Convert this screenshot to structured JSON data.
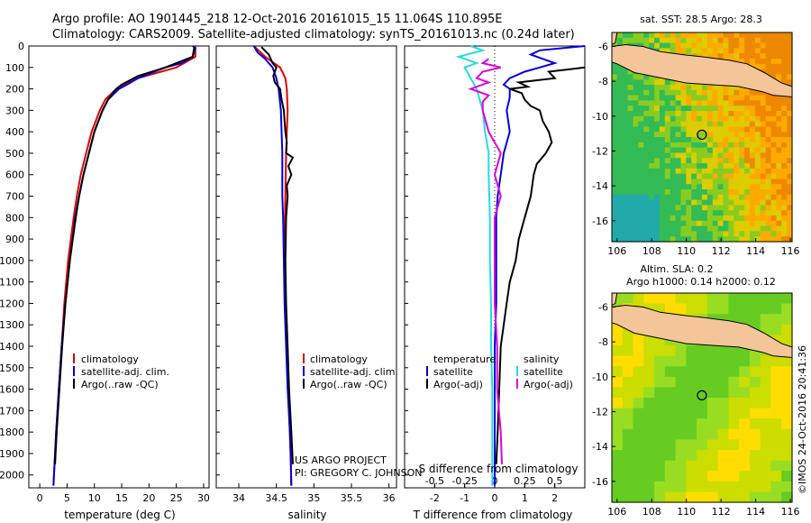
{
  "header": {
    "line1": "Argo profile: AO 1901445_218 12-Oct-2016 20161015_15 11.064S 110.895E",
    "line2": "Climatology: CARS2009. Satellite-adjusted climatology: synTS_20161013.nc (0.24d later)"
  },
  "credits": {
    "project": "US ARGO PROJECT",
    "pi": "PI: GREGORY C. JOHNSON",
    "stamp": "©IMOS 24-Oct-2016 20:41:36"
  },
  "colors": {
    "climatology": "#e00000",
    "satellite": "#0000dd",
    "argo": "#000000",
    "sat_salinity": "#22dddd",
    "argo_salinity": "#dd00dd"
  },
  "chart_data": [
    {
      "id": "temperature",
      "type": "line",
      "xlabel": "temperature (deg C)",
      "xlim": [
        -2,
        31
      ],
      "xticks": [
        0,
        5,
        10,
        15,
        20,
        25,
        30
      ],
      "ylim": [
        0,
        2060
      ],
      "yticks": [
        0,
        100,
        200,
        300,
        400,
        500,
        600,
        700,
        800,
        900,
        1000,
        1100,
        1200,
        1300,
        1400,
        1500,
        1600,
        1700,
        1800,
        1900,
        2000
      ],
      "legend": [
        "climatology",
        "satellite-adj. clim.",
        "Argo(..raw -QC)"
      ],
      "series": [
        {
          "name": "climatology",
          "color": "#e00000",
          "depth": [
            0,
            50,
            100,
            150,
            180,
            200,
            250,
            300,
            400,
            500,
            600,
            700,
            800,
            1000,
            1200,
            1400,
            1600,
            1800,
            2050
          ],
          "values": [
            28.5,
            28.5,
            25,
            18,
            15.5,
            14,
            12,
            11,
            9.5,
            8.5,
            7.5,
            6.8,
            6.2,
            5.2,
            4.5,
            4,
            3.5,
            3,
            2.5
          ]
        },
        {
          "name": "satellite-adj. clim.",
          "color": "#0000dd",
          "depth": [
            0,
            10,
            50,
            80,
            100,
            150,
            180,
            200,
            250,
            300,
            400,
            500,
            600,
            700,
            800,
            1000,
            1200,
            1400,
            1600,
            1800,
            2050
          ],
          "values": [
            28,
            28.5,
            28,
            26,
            23,
            18,
            16,
            14.5,
            12.5,
            11.5,
            10,
            9,
            8,
            7.2,
            6.5,
            5.5,
            4.7,
            4,
            3.5,
            3,
            2.5
          ]
        },
        {
          "name": "Argo(..raw -QC)",
          "color": "#000000",
          "depth": [
            5,
            50,
            100,
            140,
            180,
            200,
            250,
            300,
            400,
            500,
            600,
            700,
            800,
            1000,
            1200,
            1400,
            1600,
            1800,
            1950
          ],
          "values": [
            28.3,
            28,
            23,
            18,
            15,
            14,
            12.5,
            11.5,
            10,
            9,
            8,
            7.2,
            6.6,
            5.5,
            4.7,
            4.1,
            3.6,
            3.1,
            2.8
          ]
        }
      ]
    },
    {
      "id": "salinity",
      "type": "line",
      "xlabel": "salinity",
      "xlim": [
        33.7,
        36.1
      ],
      "xticks": [
        34,
        34.5,
        35,
        35.5,
        36
      ],
      "ylim": [
        0,
        2060
      ],
      "legend": [
        "climatology",
        "satellite-adj. clim.",
        "Argo(..raw -QC)"
      ],
      "series": [
        {
          "name": "climatology",
          "color": "#e00000",
          "depth": [
            0,
            50,
            100,
            150,
            200,
            300,
            400,
            500,
            700,
            900,
            1100,
            1300,
            1500,
            1700,
            1900,
            2050
          ],
          "values": [
            34.2,
            34.35,
            34.55,
            34.62,
            34.64,
            34.65,
            34.64,
            34.63,
            34.62,
            34.61,
            34.62,
            34.63,
            34.65,
            34.67,
            34.69,
            34.7
          ]
        },
        {
          "name": "satellite-adj. clim.",
          "color": "#0000dd",
          "depth": [
            0,
            30,
            60,
            100,
            150,
            200,
            300,
            400,
            500,
            600,
            700,
            800,
            1000,
            1200,
            1400,
            1600,
            1800,
            1900,
            2050
          ],
          "values": [
            34.2,
            34.25,
            34.35,
            34.45,
            34.5,
            34.53,
            34.56,
            34.57,
            34.58,
            34.58,
            34.58,
            34.59,
            34.6,
            34.61,
            34.63,
            34.65,
            34.68,
            34.69,
            34.7
          ]
        },
        {
          "name": "Argo(..raw -QC)",
          "color": "#000000",
          "depth": [
            5,
            40,
            80,
            100,
            140,
            170,
            200,
            250,
            300,
            350,
            400,
            450,
            500,
            520,
            560,
            600,
            650,
            700,
            800,
            1000,
            1200,
            1400,
            1600,
            1800,
            1950
          ],
          "values": [
            34.3,
            34.4,
            34.45,
            34.5,
            34.46,
            34.48,
            34.55,
            34.57,
            34.6,
            34.61,
            34.62,
            34.64,
            34.63,
            34.72,
            34.66,
            34.7,
            34.64,
            34.65,
            34.63,
            34.62,
            34.63,
            34.65,
            34.67,
            34.7,
            34.72
          ]
        }
      ]
    },
    {
      "id": "difference",
      "type": "line",
      "xlabel": "T difference from climatology",
      "xlabel_top": "S difference from climatology",
      "xlim": [
        -3,
        3
      ],
      "xticks": [
        -2,
        -1,
        0,
        1,
        2
      ],
      "xticks_top": [
        "-0.5",
        "-0.25",
        "0",
        "0.25",
        "0.5"
      ],
      "ylim": [
        0,
        2060
      ],
      "legend_left_title": "temperature",
      "legend_right_title": "salinity",
      "legend": [
        "satellite",
        "Argo(-adj)",
        "satellite",
        "Argo(-adj)"
      ],
      "series": [
        {
          "name": "T satellite",
          "color": "#0000dd",
          "depth": [
            0,
            20,
            40,
            60,
            80,
            100,
            120,
            150,
            180,
            200,
            240,
            300,
            400,
            500,
            600,
            700,
            800,
            1000,
            1200,
            1400,
            1600,
            1800,
            2050
          ],
          "values": [
            3,
            1.5,
            1.2,
            1.6,
            2,
            1.5,
            1,
            0.5,
            0.3,
            0.5,
            0.5,
            0.4,
            0.5,
            0.3,
            0.2,
            0.1,
            0.05,
            0.05,
            0.05,
            0,
            0,
            0,
            0
          ]
        },
        {
          "name": "T Argo(-adj)",
          "color": "#000000",
          "depth": [
            100,
            120,
            150,
            170,
            190,
            200,
            220,
            250,
            280,
            300,
            350,
            400,
            450,
            500,
            550,
            600,
            700,
            800,
            900,
            1000,
            1100,
            1200,
            1300,
            1400,
            1600,
            1800,
            1950
          ],
          "values": [
            3,
            1.8,
            2,
            0.8,
            1.1,
            0.5,
            0.9,
            1,
            1.2,
            1.5,
            1.6,
            1.8,
            1.9,
            1.7,
            1.4,
            1.3,
            1.2,
            1,
            0.8,
            0.7,
            0.5,
            0.4,
            0.3,
            0.2,
            0.15,
            0.1,
            0.05
          ]
        },
        {
          "name": "S satellite",
          "color": "#22dddd",
          "depth": [
            0,
            20,
            50,
            80,
            100,
            150,
            200,
            300,
            400,
            500,
            600,
            800,
            1000,
            1200,
            1400,
            1600,
            1800,
            2050
          ],
          "values": [
            -0.2,
            -0.1,
            -0.3,
            -0.15,
            -0.25,
            -0.2,
            -0.15,
            -0.1,
            -0.08,
            -0.05,
            -0.05,
            -0.04,
            -0.04,
            -0.03,
            -0.03,
            -0.02,
            -0.02,
            -0.02
          ]
        },
        {
          "name": "S Argo(-adj)",
          "color": "#dd00dd",
          "depth": [
            60,
            80,
            100,
            120,
            150,
            170,
            200,
            230,
            260,
            300,
            400,
            500,
            600,
            700,
            800,
            1000,
            1200,
            1400,
            1600,
            1800,
            1950
          ],
          "values": [
            -0.05,
            -0.1,
            0.05,
            -0.1,
            -0.15,
            -0.05,
            -0.2,
            -0.05,
            -0.1,
            -0.1,
            -0.05,
            0.05,
            0,
            0.05,
            0,
            0,
            0,
            0.02,
            0.02,
            0.05,
            0.06
          ]
        }
      ]
    },
    {
      "id": "sst-map",
      "type": "heatmap",
      "title": "sat. SST: 28.5 Argo: 28.3",
      "xlim": [
        105.7,
        116.1
      ],
      "ylim": [
        -17.2,
        -5.2
      ],
      "xticks": [
        106,
        108,
        110,
        112,
        114,
        116
      ],
      "yticks": [
        -6,
        -8,
        -10,
        -12,
        -14,
        -16
      ],
      "marker": {
        "lon": 110.895,
        "lat": -11.064
      }
    },
    {
      "id": "sla-map",
      "type": "heatmap",
      "title": "Altim. SLA: 0.2",
      "subtitle": "Argo h1000: 0.14 h2000: 0.12",
      "xlim": [
        105.7,
        116.1
      ],
      "ylim": [
        -17.2,
        -5.2
      ],
      "xticks": [
        106,
        108,
        110,
        112,
        114,
        116
      ],
      "yticks": [
        -6,
        -8,
        -10,
        -12,
        -14,
        -16
      ],
      "marker": {
        "lon": 110.895,
        "lat": -11.064
      }
    }
  ]
}
